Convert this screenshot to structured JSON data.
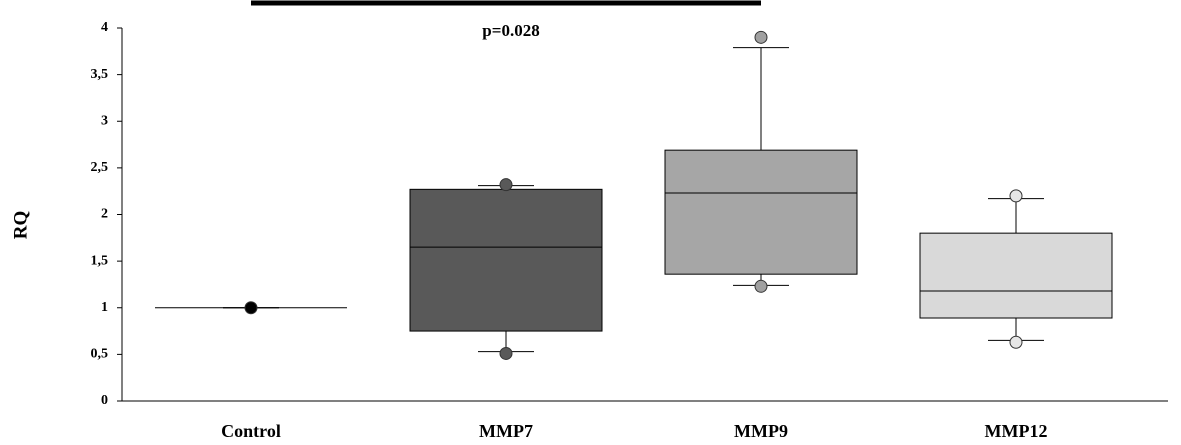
{
  "chart_data": {
    "type": "box",
    "y_label": "RQ",
    "annotation": "p=0.028",
    "categories": [
      "Control",
      "MMP7",
      "MMP9",
      "MMP12"
    ],
    "boxes": [
      {
        "min": 1,
        "q1": 1,
        "median": 1,
        "q3": 1,
        "max": 1,
        "points": [
          1
        ],
        "color": "#ffffff",
        "point_color": "#000000"
      },
      {
        "min": 0.53,
        "q1": 0.75,
        "median": 1.65,
        "q3": 2.27,
        "max": 2.31,
        "points": [
          0.51,
          2.32
        ],
        "color": "#595959",
        "point_color": "#595959"
      },
      {
        "min": 1.24,
        "q1": 1.36,
        "median": 2.23,
        "q3": 2.69,
        "max": 3.79,
        "points": [
          1.23,
          3.9
        ],
        "color": "#a6a6a6",
        "point_color": "#a0a0a0"
      },
      {
        "min": 0.65,
        "q1": 0.89,
        "median": 1.18,
        "q3": 1.8,
        "max": 2.17,
        "points": [
          0.63,
          2.2
        ],
        "color": "#d9d9d9",
        "point_color": "#e6e6e6"
      }
    ],
    "ylim": [
      0,
      4
    ],
    "yticks": [
      0,
      {
        "value": 0.5,
        "label": "0,5"
      },
      1,
      {
        "value": 1.5,
        "label": "1,5"
      },
      2,
      {
        "value": 2.5,
        "label": "2,5"
      },
      3,
      {
        "value": 3.5,
        "label": "3,5"
      },
      4
    ]
  }
}
